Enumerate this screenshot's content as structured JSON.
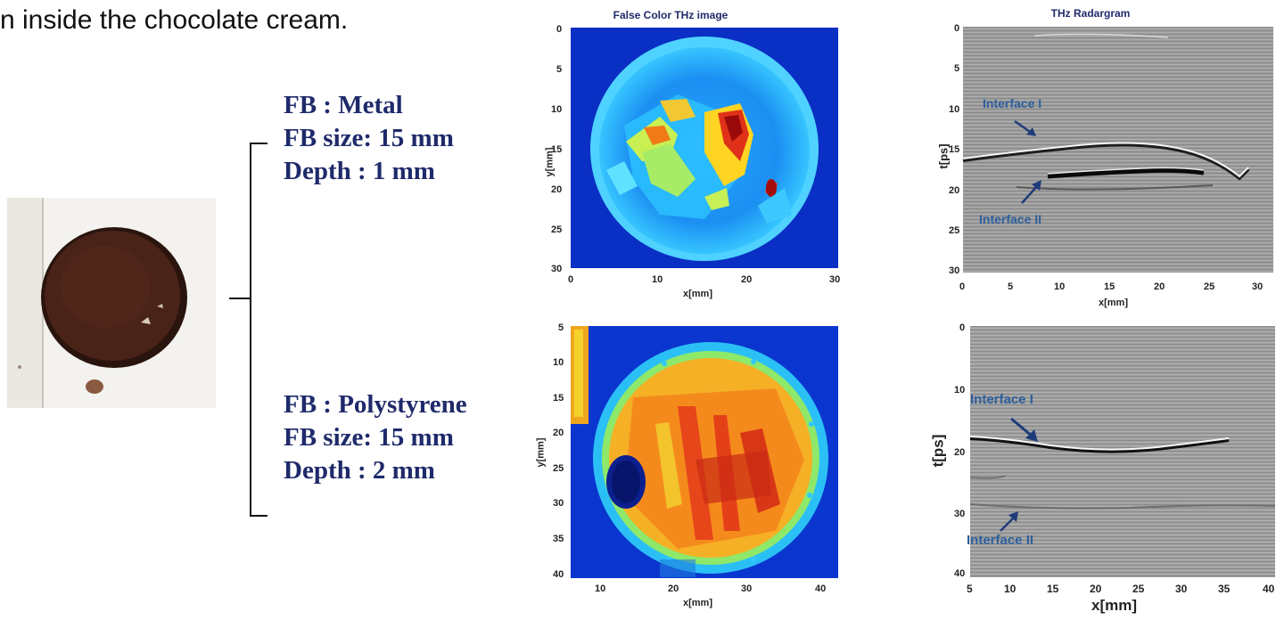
{
  "caption": "n inside the chocolate cream.",
  "samples": [
    {
      "fb_type": "FB : Metal",
      "fb_size": "FB size: 15 mm",
      "depth": "Depth : 1 mm"
    },
    {
      "fb_type": "FB : Polystyrene",
      "fb_size": "FB size: 15 mm",
      "depth": "Depth : 2 mm"
    }
  ],
  "false_color_top": {
    "title": "False Color THz image",
    "xlabel": "x[mm]",
    "ylabel": "y[mm]",
    "xticks": [
      "0",
      "10",
      "20",
      "30"
    ],
    "yticks": [
      "0",
      "5",
      "10",
      "15",
      "20",
      "25",
      "30"
    ]
  },
  "false_color_bottom": {
    "title": "",
    "xlabel": "x[mm]",
    "ylabel": "y[mm]",
    "xticks": [
      "10",
      "20",
      "30",
      "40"
    ],
    "yticks": [
      "5",
      "10",
      "15",
      "20",
      "25",
      "30",
      "35",
      "40"
    ]
  },
  "radargram_top": {
    "title": "THz Radargram",
    "xlabel": "x[mm]",
    "ylabel": "t[ps]",
    "xticks": [
      "0",
      "5",
      "10",
      "15",
      "20",
      "25",
      "30"
    ],
    "yticks": [
      "0",
      "5",
      "10",
      "15",
      "20",
      "25",
      "30"
    ],
    "annotation_1": "Interface I",
    "annotation_2": "Interface II"
  },
  "radargram_bottom": {
    "title": "",
    "xlabel": "x[mm]",
    "ylabel": "t[ps]",
    "xticks": [
      "5",
      "10",
      "15",
      "20",
      "25",
      "30",
      "35",
      "40"
    ],
    "yticks": [
      "0",
      "10",
      "20",
      "30",
      "40"
    ],
    "annotation_1": "Interface I",
    "annotation_2": "Interface II"
  },
  "colors": {
    "fb_text": "#1f2a6b",
    "annotation": "#2e5f9e",
    "chocolate": "#3b1a12"
  }
}
